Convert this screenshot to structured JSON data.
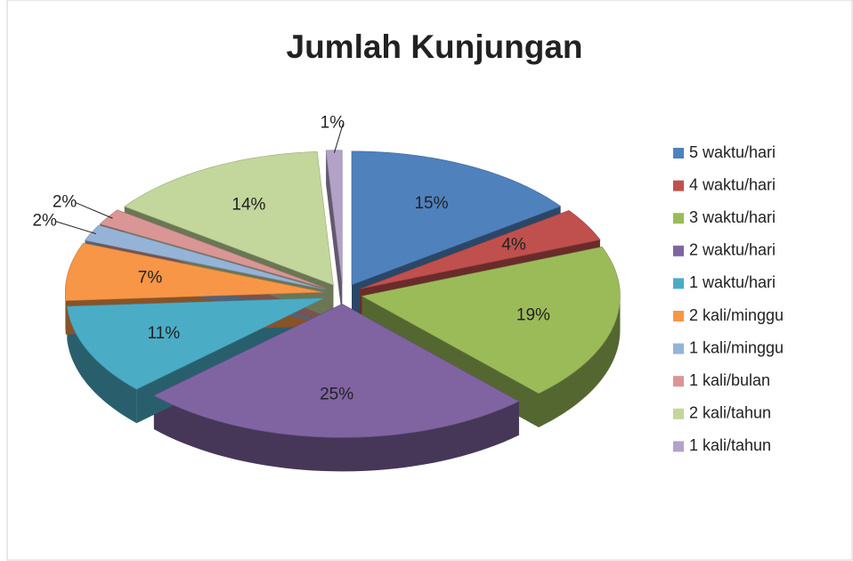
{
  "chart_data": {
    "type": "pie",
    "title": "Jumlah Kunjungan",
    "categories": [
      "5 waktu/hari",
      "4 waktu/hari",
      "3 waktu/hari",
      "2 waktu/hari",
      "1 waktu/hari",
      "2 kali/minggu",
      "1 kali/minggu",
      "1 kali/bulan",
      "2 kali/tahun",
      "1 kali/tahun"
    ],
    "values": [
      15,
      4,
      19,
      25,
      11,
      7,
      2,
      2,
      14,
      1
    ],
    "value_labels": [
      "15%",
      "4%",
      "19%",
      "25%",
      "11%",
      "7%",
      "2%",
      "2%",
      "14%",
      "1%"
    ],
    "colors": [
      "#4f81bd",
      "#c0504d",
      "#9bbb59",
      "#8064a2",
      "#4bacc6",
      "#f79646",
      "#95b3d7",
      "#d99694",
      "#c3d69b",
      "#b3a2c7"
    ],
    "legend": "right"
  }
}
